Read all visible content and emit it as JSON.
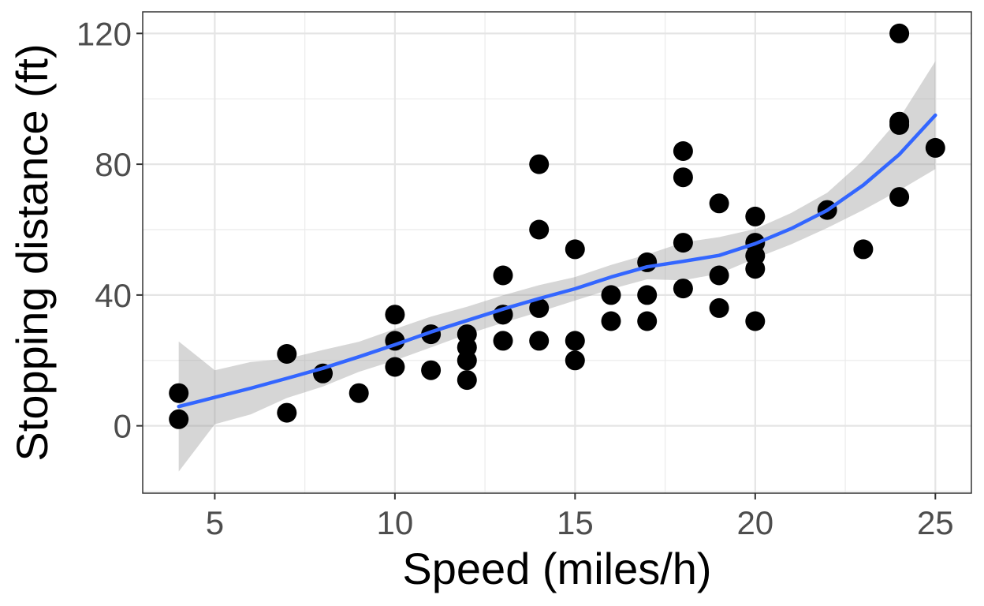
{
  "chart_data": {
    "type": "scatter",
    "xlabel": "Speed (miles/h)",
    "ylabel": "Stopping distance (ft)",
    "xlim": [
      3,
      26
    ],
    "ylim": [
      -20.6,
      126.6
    ],
    "x_ticks": [
      5,
      10,
      15,
      20,
      25
    ],
    "y_ticks": [
      0,
      40,
      80,
      120
    ],
    "x_tick_labels": [
      "5",
      "10",
      "15",
      "20",
      "25"
    ],
    "y_tick_labels": [
      "0",
      "40",
      "80",
      "120"
    ],
    "grid": true,
    "points": [
      [
        4,
        2
      ],
      [
        4,
        10
      ],
      [
        7,
        4
      ],
      [
        7,
        22
      ],
      [
        8,
        16
      ],
      [
        9,
        10
      ],
      [
        10,
        18
      ],
      [
        10,
        26
      ],
      [
        10,
        34
      ],
      [
        11,
        17
      ],
      [
        11,
        28
      ],
      [
        12,
        14
      ],
      [
        12,
        20
      ],
      [
        12,
        24
      ],
      [
        12,
        28
      ],
      [
        13,
        26
      ],
      [
        13,
        34
      ],
      [
        13,
        34
      ],
      [
        13,
        46
      ],
      [
        14,
        26
      ],
      [
        14,
        36
      ],
      [
        14,
        60
      ],
      [
        14,
        80
      ],
      [
        15,
        20
      ],
      [
        15,
        26
      ],
      [
        15,
        54
      ],
      [
        16,
        32
      ],
      [
        16,
        40
      ],
      [
        17,
        32
      ],
      [
        17,
        40
      ],
      [
        17,
        50
      ],
      [
        18,
        42
      ],
      [
        18,
        56
      ],
      [
        18,
        76
      ],
      [
        18,
        84
      ],
      [
        19,
        36
      ],
      [
        19,
        46
      ],
      [
        19,
        68
      ],
      [
        20,
        32
      ],
      [
        20,
        48
      ],
      [
        20,
        52
      ],
      [
        20,
        56
      ],
      [
        20,
        64
      ],
      [
        22,
        66
      ],
      [
        23,
        54
      ],
      [
        24,
        70
      ],
      [
        24,
        92
      ],
      [
        24,
        93
      ],
      [
        24,
        120
      ],
      [
        25,
        85
      ]
    ],
    "smooth": {
      "method": "loess",
      "color": "#3366FF",
      "band_color": "#999999",
      "x": [
        4,
        5,
        6,
        7,
        8,
        9,
        10,
        11,
        12,
        13,
        14,
        15,
        16,
        17,
        18,
        19,
        20,
        21,
        22,
        23,
        24,
        25
      ],
      "y": [
        5.9,
        8.7,
        11.5,
        14.5,
        17.6,
        21.1,
        24.8,
        28.7,
        32.2,
        35.7,
        38.9,
        41.9,
        45.5,
        48.6,
        50.3,
        52.1,
        55.7,
        60.3,
        65.9,
        73.6,
        83.0,
        95.0
      ],
      "lower": [
        -14,
        0.5,
        3.5,
        8.5,
        12.0,
        16.5,
        20.0,
        24.0,
        28.0,
        31.5,
        34.8,
        38.3,
        41.8,
        44.8,
        44.5,
        46.5,
        51.2,
        55.5,
        60.5,
        66.0,
        72.0,
        78.5
      ],
      "upper": [
        25.8,
        17.0,
        19.5,
        20.5,
        23.2,
        25.7,
        29.6,
        33.4,
        36.4,
        39.9,
        43.0,
        45.5,
        49.2,
        52.4,
        56.1,
        57.7,
        60.2,
        65.1,
        71.3,
        81.2,
        94.0,
        111.5
      ]
    },
    "point_color": "#000000"
  }
}
